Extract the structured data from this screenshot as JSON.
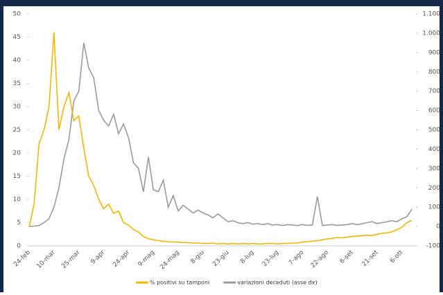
{
  "chart_data": {
    "type": "line",
    "categories": [
      "24-feb",
      null,
      null,
      null,
      null,
      "10-mar",
      null,
      null,
      null,
      null,
      "25-mar",
      null,
      null,
      null,
      null,
      "9-apr",
      null,
      null,
      null,
      null,
      "24-apr",
      null,
      null,
      null,
      null,
      "9-mag",
      null,
      null,
      null,
      null,
      "24-mag",
      null,
      null,
      null,
      null,
      "8-giu",
      null,
      null,
      null,
      null,
      "23-giu",
      null,
      null,
      null,
      null,
      "8-lug",
      null,
      null,
      null,
      null,
      "23-lug",
      null,
      null,
      null,
      null,
      "7-ago",
      null,
      null,
      null,
      null,
      "22-ago",
      null,
      null,
      null,
      null,
      "6-set",
      null,
      null,
      null,
      null,
      "21-set",
      null,
      null,
      null,
      null,
      "6-ott",
      null,
      null
    ],
    "series": [
      {
        "name": "% positivi su tamponi",
        "color": "#f2b705",
        "axis": "y",
        "values": [
          4,
          9,
          22,
          25,
          30,
          46,
          25,
          30,
          33,
          27,
          28,
          21,
          15,
          13,
          10,
          8,
          9,
          7,
          7.5,
          5,
          4.5,
          3.5,
          3,
          2,
          1.5,
          1.3,
          1.1,
          1,
          0.9,
          0.8,
          0.8,
          0.7,
          0.7,
          0.6,
          0.6,
          0.5,
          0.5,
          0.6,
          0.4,
          0.5,
          0.4,
          0.5,
          0.4,
          0.5,
          0.4,
          0.5,
          0.4,
          0.4,
          0.5,
          0.5,
          0.4,
          0.5,
          0.5,
          0.6,
          0.6,
          0.8,
          0.9,
          1,
          1.1,
          1.3,
          1.5,
          1.6,
          1.8,
          1.7,
          1.9,
          2,
          2.1,
          2.2,
          2.3,
          2.2,
          2.5,
          2.7,
          2.8,
          3,
          3.5,
          4,
          5,
          5.5
        ]
      },
      {
        "name": "variazioni deceduti (asse dx)",
        "color": "#9a9a9a",
        "axis": "y2",
        "values": [
          0,
          2,
          5,
          20,
          40,
          100,
          200,
          350,
          450,
          650,
          700,
          950,
          820,
          770,
          600,
          550,
          520,
          580,
          480,
          530,
          460,
          330,
          300,
          180,
          360,
          190,
          180,
          240,
          100,
          160,
          80,
          110,
          90,
          70,
          85,
          70,
          60,
          45,
          65,
          45,
          25,
          30,
          20,
          15,
          20,
          12,
          15,
          10,
          15,
          8,
          10,
          5,
          10,
          8,
          5,
          10,
          6,
          8,
          155,
          5,
          8,
          10,
          6,
          8,
          10,
          15,
          10,
          14,
          20,
          25,
          15,
          20,
          25,
          30,
          25,
          40,
          50,
          90
        ]
      }
    ],
    "ylim": [
      0,
      50
    ],
    "yticks": [
      0,
      5,
      10,
      15,
      20,
      25,
      30,
      35,
      40,
      45,
      50
    ],
    "y2lim": [
      -100,
      1100
    ],
    "y2ticks": [
      -100,
      0,
      100,
      200,
      300,
      400,
      500,
      600,
      700,
      800,
      900,
      {
        "value": 1000,
        "label": "1.000"
      },
      {
        "value": 1100,
        "label": "1.100"
      }
    ],
    "grid": false
  }
}
